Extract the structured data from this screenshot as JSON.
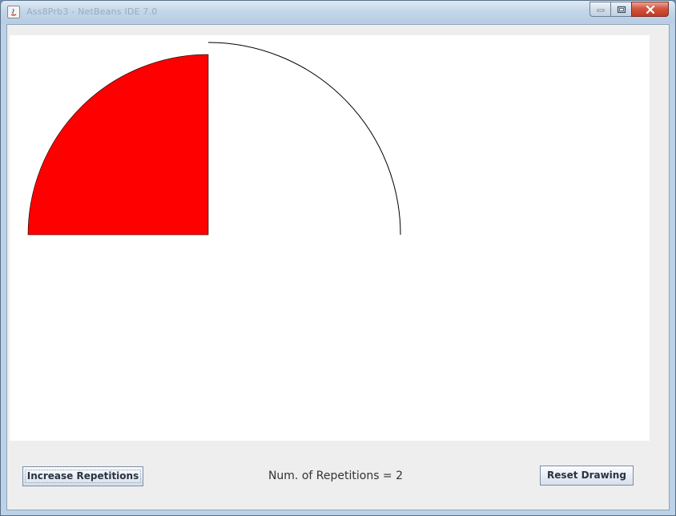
{
  "window": {
    "title": "Ass8Prb3 - NetBeans IDE 7.0",
    "controls": {
      "minimize": "minimize-icon",
      "maximize": "maximize-icon",
      "close": "close-icon"
    }
  },
  "drawing": {
    "shapes": [
      {
        "kind": "filled-quarter-circle",
        "quadrant": "upper-left",
        "fill": "#ff0000"
      },
      {
        "kind": "arc-outline",
        "quadrant": "upper-right",
        "stroke": "#000000"
      }
    ],
    "background": "#ffffff"
  },
  "controls": {
    "increase_label": "Increase Repetitions",
    "status_text": "Num. of Repetitions = 2",
    "reset_label": "Reset Drawing"
  }
}
